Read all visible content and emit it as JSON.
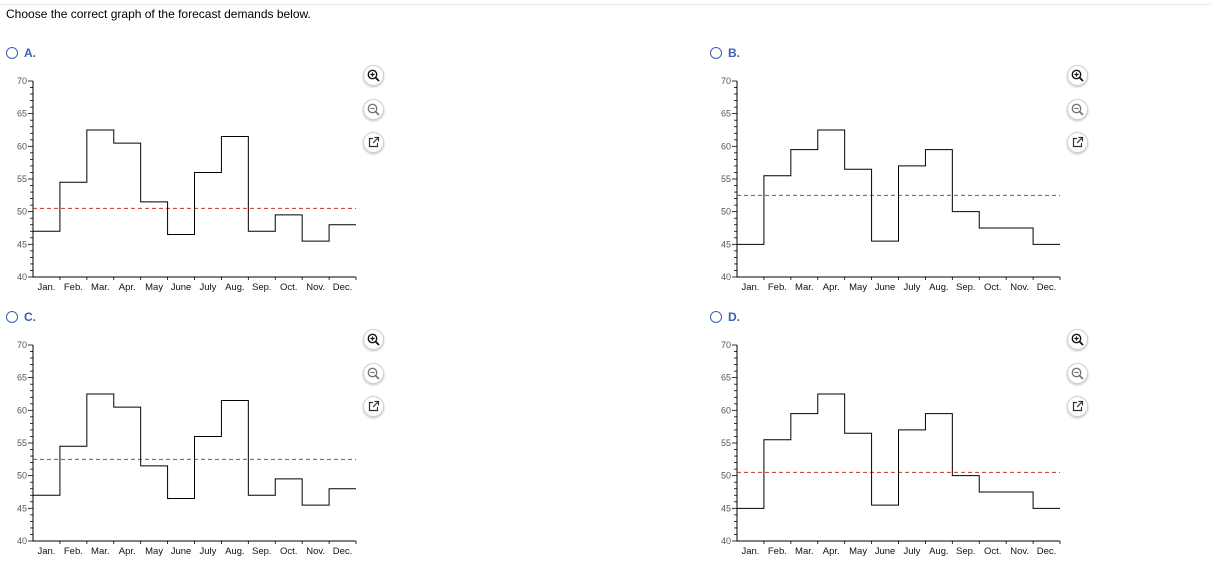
{
  "question": "Choose the correct graph of the forecast demands below.",
  "ui": {
    "accent": "#3a5fb8",
    "forecast_line_color": "#c0392b"
  },
  "tools": {
    "zoom_in": "zoom-in-icon",
    "zoom_out": "zoom-out-icon",
    "popout": "popout-icon"
  },
  "options": [
    {
      "letter": "A."
    },
    {
      "letter": "B."
    },
    {
      "letter": "C."
    },
    {
      "letter": "D."
    }
  ],
  "chart_data": [
    {
      "type": "line",
      "step": true,
      "categories": [
        "Jan.",
        "Feb.",
        "Mar.",
        "Apr.",
        "May",
        "June",
        "July",
        "Aug.",
        "Sep.",
        "Oct.",
        "Nov.",
        "Dec."
      ],
      "y_ticks": [
        "40",
        "45",
        "50",
        "55",
        "60",
        "65",
        "70"
      ],
      "ylim": [
        40,
        70
      ],
      "values": [
        47,
        54.5,
        62.5,
        60.5,
        51.5,
        46.5,
        56,
        61.5,
        47,
        49.5,
        45.5,
        48
      ],
      "reference_line": 50.5,
      "grid": false
    },
    {
      "type": "line",
      "step": true,
      "categories": [
        "Jan.",
        "Feb.",
        "Mar.",
        "Apr.",
        "May",
        "June",
        "July",
        "Aug.",
        "Sep.",
        "Oct.",
        "Nov.",
        "Dec."
      ],
      "y_ticks": [
        "40",
        "45",
        "50",
        "55",
        "60",
        "65",
        "70"
      ],
      "ylim": [
        40,
        70
      ],
      "values": [
        45,
        55.5,
        59.5,
        62.5,
        56.5,
        45.5,
        57,
        59.5,
        50,
        47.5,
        47.5,
        45
      ],
      "reference_line": 52.5,
      "grid": false
    },
    {
      "type": "line",
      "step": true,
      "categories": [
        "Jan.",
        "Feb.",
        "Mar.",
        "Apr.",
        "May",
        "June",
        "July",
        "Aug.",
        "Sep.",
        "Oct.",
        "Nov.",
        "Dec."
      ],
      "y_ticks": [
        "40",
        "45",
        "50",
        "55",
        "60",
        "65",
        "70"
      ],
      "ylim": [
        40,
        70
      ],
      "values": [
        47,
        54.5,
        62.5,
        60.5,
        51.5,
        46.5,
        56,
        61.5,
        47,
        49.5,
        45.5,
        48
      ],
      "reference_line": 52.5,
      "grid": false
    },
    {
      "type": "line",
      "step": true,
      "categories": [
        "Jan.",
        "Feb.",
        "Mar.",
        "Apr.",
        "May",
        "June",
        "July",
        "Aug.",
        "Sep.",
        "Oct.",
        "Nov.",
        "Dec."
      ],
      "y_ticks": [
        "40",
        "45",
        "50",
        "55",
        "60",
        "65",
        "70"
      ],
      "ylim": [
        40,
        70
      ],
      "values": [
        45,
        55.5,
        59.5,
        62.5,
        56.5,
        45.5,
        57,
        59.5,
        50,
        47.5,
        47.5,
        45
      ],
      "reference_line": 50.5,
      "grid": false
    }
  ]
}
